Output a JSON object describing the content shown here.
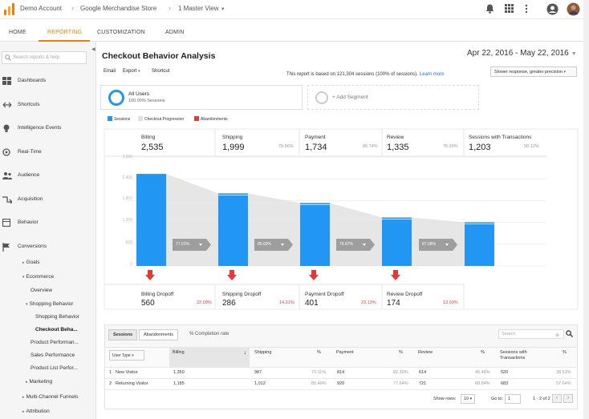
{
  "header": {
    "account": "Demo Account",
    "property": "Google Merchandise Store",
    "view": "1 Master View"
  },
  "nav": {
    "tabs": [
      "HOME",
      "REPORTING",
      "CUSTOMIZATION",
      "ADMIN"
    ],
    "active": "REPORTING"
  },
  "sidebar": {
    "search_placeholder": "Search reports & help",
    "items": [
      {
        "label": "Dashboards",
        "icon": "dashboard-icon"
      },
      {
        "label": "Shortcuts",
        "icon": "shortcuts-icon"
      },
      {
        "label": "Intelligence Events",
        "icon": "lightbulb-icon"
      },
      {
        "label": "Real-Time",
        "icon": "realtime-icon"
      },
      {
        "label": "Audience",
        "icon": "audience-icon"
      },
      {
        "label": "Acquisition",
        "icon": "acquisition-icon"
      },
      {
        "label": "Behavior",
        "icon": "behavior-icon"
      },
      {
        "label": "Conversions",
        "icon": "flag-icon"
      }
    ],
    "sub": {
      "goals": "Goals",
      "ecommerce": "Ecommerce",
      "overview": "Overview",
      "shopping_behavior": "Shopping Behavior",
      "shopping_behavior_child": "Shopping Behavior",
      "checkout_behavior": "Checkout Beha...",
      "product_performance": "Product Performan...",
      "sales_performance": "Sales Performance",
      "product_list": "Product List Perfor...",
      "marketing": "Marketing",
      "multichannel": "Multi-Channel Funnels",
      "attribution": "Attribution"
    }
  },
  "report": {
    "title": "Checkout Behavior Analysis",
    "date_range": "Apr 22, 2016 - May 22, 2016",
    "toolbar": {
      "email": "Email",
      "export": "Export",
      "shortcut": "Shortcut"
    },
    "basis": "This report is based on 121,304 sessions (100% of sessions).",
    "learn_more": "Learn more",
    "precision": "Slower response, greater precision",
    "segment": {
      "title": "All Users",
      "sub": "100.00% Sessions",
      "add": "+ Add Segment"
    },
    "legend": [
      "Sessions",
      "Checkout Progression",
      "Abandonments"
    ],
    "colors": {
      "sessions": "#2196f3",
      "progression": "#e0e0e0",
      "abandon": "#e53935",
      "accent": "#f57c00"
    }
  },
  "chart_data": {
    "type": "bar",
    "categories": [
      "Billing",
      "Shipping",
      "Payment",
      "Review",
      "Sessions with Transactions"
    ],
    "series": [
      {
        "name": "Sessions",
        "values": [
          2535,
          1999,
          1734,
          1335,
          1203
        ]
      }
    ],
    "value_labels": [
      "2,535",
      "1,999",
      "1,734",
      "1,335",
      "1,203"
    ],
    "stage_pct": [
      "",
      "78.86%",
      "86.74%",
      "76.99%",
      "90.12%"
    ],
    "progression_rates": [
      "77.01%",
      "85.60%",
      "76.87%",
      "87.08%"
    ],
    "dropoffs": [
      {
        "label": "Billing Dropoff",
        "value": "560",
        "pct": "22.09%"
      },
      {
        "label": "Shipping Dropoff",
        "value": "286",
        "pct": "14.31%"
      },
      {
        "label": "Payment Dropoff",
        "value": "401",
        "pct": "23.13%"
      },
      {
        "label": "Review Dropoff",
        "value": "174",
        "pct": "13.03%"
      }
    ],
    "yticks": [
      "3,000",
      "2,400",
      "1,800",
      "1,200",
      "600",
      "0"
    ],
    "ylim": [
      0,
      3000
    ]
  },
  "table": {
    "tabs": [
      "Sessions",
      "Abandonments"
    ],
    "completion": "% Completion rate",
    "search_placeholder": "Search",
    "dim_header": "User Type",
    "headers": [
      "Billing",
      "Shipping",
      "%",
      "Payment",
      "%",
      "Review",
      "%",
      "Sessions with Transactions",
      "%"
    ],
    "rows": [
      {
        "idx": "1",
        "type": "New Visitor",
        "cells": [
          "1,350",
          "987",
          "73.11%",
          "814",
          "82.30%",
          "614",
          "45.48%",
          "520",
          "38.52%"
        ]
      },
      {
        "idx": "2",
        "type": "Returning Visitor",
        "cells": [
          "1,185",
          "1,012",
          "85.40%",
          "920",
          "77.64%",
          "721",
          "60.84%",
          "683",
          "57.64%"
        ]
      }
    ],
    "show_rows_label": "Show rows:",
    "show_rows": "10",
    "goto_label": "Go to:",
    "goto": "1",
    "range": "1 - 2 of 2"
  }
}
